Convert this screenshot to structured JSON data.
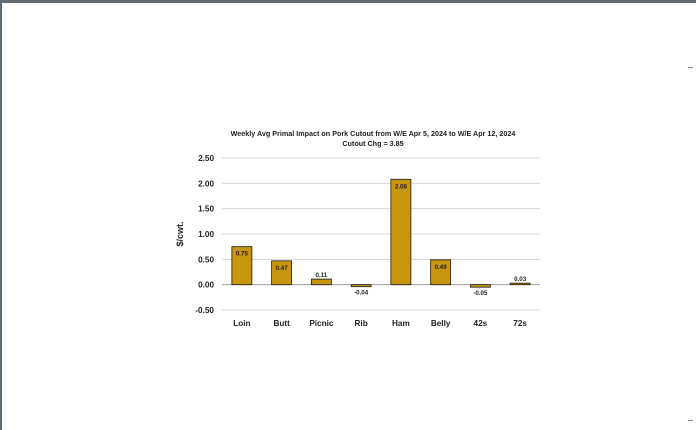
{
  "chart_data": {
    "type": "bar",
    "title": "Weekly Avg Primal Impact on Pork Cutout from W/E Apr 5, 2024 to W/E Apr 12, 2024",
    "subtitle": "Cutout Chg = 3.85",
    "ylabel": "$/cwt.",
    "xlabel": "",
    "ylim": [
      -0.5,
      2.5
    ],
    "yticks": [
      "2.50",
      "2.00",
      "1.50",
      "1.00",
      "0.50",
      "0.00",
      "-0.50"
    ],
    "categories": [
      "Loin",
      "Butt",
      "Picnic",
      "Rib",
      "Ham",
      "Belly",
      "42s",
      "72s"
    ],
    "values": [
      0.75,
      0.47,
      0.11,
      -0.04,
      2.08,
      0.49,
      -0.05,
      0.03
    ],
    "data_labels": [
      "0.75",
      "0.47",
      "0.11",
      "-0.04",
      "2.08",
      "0.49",
      "-0.05",
      "0.03"
    ],
    "grid": true,
    "bar_color": "#C8960C",
    "bar_edge_color": "#1a1a1a"
  }
}
